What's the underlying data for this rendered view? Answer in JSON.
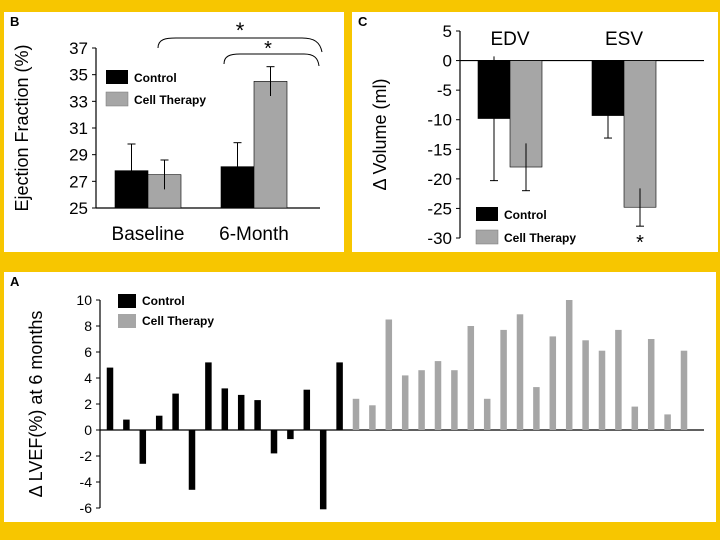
{
  "colors": {
    "background": "#f7c600",
    "control": "#000000",
    "cell_therapy": "#a6a6a6"
  },
  "chart_data": [
    {
      "panel": "B",
      "type": "bar",
      "ylabel": "Ejection Fraction (%)",
      "categories": [
        "Baseline",
        "6-Month"
      ],
      "ylim": [
        25,
        37
      ],
      "yticks": [
        25,
        27,
        29,
        31,
        33,
        35,
        37
      ],
      "series": [
        {
          "name": "Control",
          "values": [
            27.8,
            28.1
          ],
          "errors": [
            2.0,
            1.8
          ]
        },
        {
          "name": "Cell Therapy",
          "values": [
            27.5,
            34.5
          ],
          "errors": [
            1.1,
            1.1
          ]
        }
      ],
      "significance": [
        "*",
        "*"
      ],
      "legend": "top-left"
    },
    {
      "panel": "C",
      "type": "bar",
      "ylabel": "Δ Volume (ml)",
      "categories": [
        "EDV",
        "ESV"
      ],
      "ylim": [
        -30,
        5
      ],
      "yticks": [
        5,
        0,
        -5,
        -10,
        -15,
        -20,
        -25,
        -30
      ],
      "series": [
        {
          "name": "Control",
          "values": [
            -9.8,
            -9.3
          ],
          "errors": [
            10.5,
            3.8
          ]
        },
        {
          "name": "Cell Therapy",
          "values": [
            -18.0,
            -24.8
          ],
          "errors": [
            4.0,
            3.2
          ]
        }
      ],
      "significance": [
        "*"
      ],
      "legend": "bottom-left"
    },
    {
      "panel": "A",
      "type": "bar",
      "ylabel": "Δ LVEF(%) at 6 months",
      "ylim": [
        -6,
        10
      ],
      "yticks": [
        10,
        8,
        6,
        4,
        2,
        0,
        -2,
        -4,
        -6
      ],
      "series": [
        {
          "name": "Control",
          "values": [
            4.8,
            0.8,
            -2.6,
            1.1,
            2.8,
            -4.6,
            5.2,
            3.2,
            2.7,
            2.3,
            -1.8,
            -0.7,
            3.1,
            -6.1,
            5.2
          ]
        },
        {
          "name": "Cell Therapy",
          "values": [
            2.4,
            1.9,
            8.5,
            4.2,
            4.6,
            5.3,
            4.6,
            8.0,
            2.4,
            7.7,
            8.9,
            3.3,
            7.2,
            10.0,
            6.9,
            6.1,
            7.7,
            1.8,
            7.0,
            1.2,
            6.1
          ]
        }
      ],
      "legend": "top-left"
    }
  ],
  "panels": {
    "b": {
      "label": "B",
      "significance": [
        "*",
        "*"
      ]
    },
    "c": {
      "label": "C",
      "significance": "*"
    },
    "a": {
      "label": "A"
    }
  }
}
